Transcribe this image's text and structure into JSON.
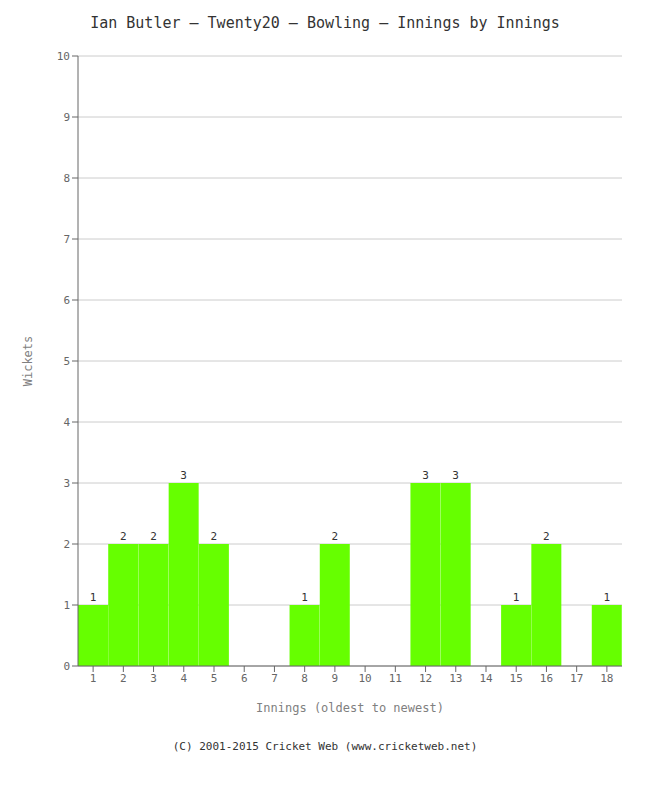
{
  "chart_data": {
    "type": "bar",
    "title": "Ian Butler – Twenty20 – Bowling – Innings by Innings",
    "xlabel": "Innings (oldest to newest)",
    "ylabel": "Wickets",
    "categories": [
      "1",
      "2",
      "3",
      "4",
      "5",
      "6",
      "7",
      "8",
      "9",
      "10",
      "11",
      "12",
      "13",
      "14",
      "15",
      "16",
      "17",
      "18"
    ],
    "values": [
      1,
      2,
      2,
      3,
      2,
      0,
      0,
      1,
      2,
      0,
      0,
      3,
      3,
      0,
      1,
      2,
      0,
      1
    ],
    "color": "#66ff00",
    "ylim": [
      0,
      10
    ],
    "yticks": [
      0,
      1,
      2,
      3,
      4,
      5,
      6,
      7,
      8,
      9,
      10
    ],
    "grid": true,
    "data_labels": true,
    "footer": "(C) 2001-2015 Cricket Web (www.cricketweb.net)"
  }
}
